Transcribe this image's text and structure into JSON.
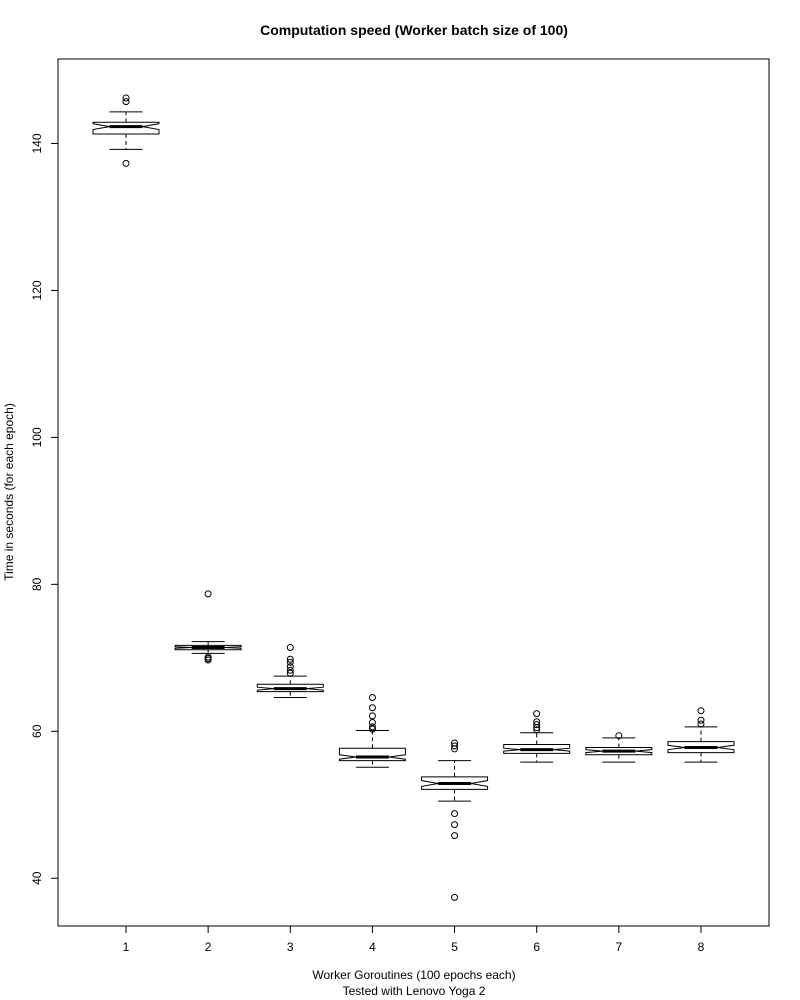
{
  "chart_data": {
    "type": "boxplot",
    "notched": true,
    "title": "Computation speed (Worker batch size of 100)",
    "xlabel": "Worker Goroutines (100 epochs each)",
    "xlabel_line2": "Tested with Lenovo Yoga 2",
    "ylabel": "Time in seconds (for each epoch)",
    "ylim": [
      33.5,
      151.5
    ],
    "yticks": [
      40,
      60,
      80,
      100,
      120,
      140
    ],
    "categories": [
      "1",
      "2",
      "3",
      "4",
      "5",
      "6",
      "7",
      "8"
    ],
    "boxes": [
      {
        "min": 139.2,
        "q1": 141.3,
        "median": 142.3,
        "q3": 142.9,
        "max": 144.3,
        "notch_lo": 141.9,
        "notch_hi": 142.7,
        "outliers": [
          137.3,
          145.7,
          146.2
        ]
      },
      {
        "min": 70.6,
        "q1": 71.1,
        "median": 71.4,
        "q3": 71.7,
        "max": 72.2,
        "notch_lo": 71.3,
        "notch_hi": 71.5,
        "outliers": [
          78.7,
          70.1,
          69.9,
          69.7
        ]
      },
      {
        "min": 64.6,
        "q1": 65.4,
        "median": 65.8,
        "q3": 66.4,
        "max": 67.5,
        "notch_lo": 65.6,
        "notch_hi": 66.0,
        "outliers": [
          71.4,
          69.8,
          69.4,
          68.8,
          68.3,
          67.9
        ]
      },
      {
        "min": 55.1,
        "q1": 56.0,
        "median": 56.5,
        "q3": 57.7,
        "max": 60.1,
        "notch_lo": 56.2,
        "notch_hi": 56.8,
        "outliers": [
          64.6,
          63.2,
          62.1,
          61.2,
          60.6,
          60.3
        ]
      },
      {
        "min": 50.5,
        "q1": 52.1,
        "median": 52.9,
        "q3": 53.8,
        "max": 56.0,
        "notch_lo": 52.5,
        "notch_hi": 53.3,
        "outliers": [
          58.4,
          58.0,
          57.6,
          48.8,
          47.3,
          45.8,
          37.4
        ]
      },
      {
        "min": 55.8,
        "q1": 57.0,
        "median": 57.5,
        "q3": 58.2,
        "max": 59.8,
        "notch_lo": 57.3,
        "notch_hi": 57.7,
        "outliers": [
          62.4,
          61.3,
          60.9,
          60.5,
          60.2
        ]
      },
      {
        "min": 55.8,
        "q1": 56.8,
        "median": 57.3,
        "q3": 57.8,
        "max": 59.1,
        "notch_lo": 57.1,
        "notch_hi": 57.5,
        "outliers": [
          59.4
        ]
      },
      {
        "min": 55.8,
        "q1": 57.1,
        "median": 57.8,
        "q3": 58.6,
        "max": 60.6,
        "notch_lo": 57.5,
        "notch_hi": 58.1,
        "outliers": [
          62.8,
          61.5,
          61.0
        ]
      }
    ]
  }
}
